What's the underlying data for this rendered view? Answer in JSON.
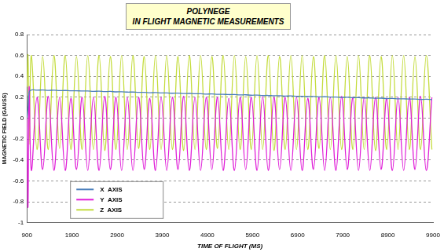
{
  "chart_data": {
    "type": "line",
    "title": "POLYNEGE",
    "subtitle": "IN FLIGHT MAGNETIC MEASUREMENTS",
    "x_label": "TIME OF FLIGHT (MS)",
    "y_label": "MAGNETIC FIELD (GAUSS)",
    "x": [
      900,
      925,
      950,
      1000,
      1125,
      1250,
      1375,
      1500,
      1625,
      1750,
      1875,
      2000,
      2125,
      2250,
      2375,
      2500,
      2625,
      2750,
      2875,
      3000,
      3125,
      3250,
      3375,
      3500,
      3625,
      3750,
      3875,
      4000,
      4125,
      4250,
      4375,
      4500,
      4625,
      4750,
      4875,
      5000,
      5125,
      5250,
      5375,
      5500,
      5625,
      5750,
      5875,
      6000,
      6125,
      6250,
      6375,
      6500,
      6625,
      6750,
      6875,
      7000,
      7125,
      7250,
      7375,
      7500,
      7625,
      7750,
      7875,
      8000,
      8125,
      8250,
      8375,
      8500,
      8625,
      8750,
      8875,
      9000,
      9125,
      9250,
      9375,
      9500,
      9625,
      9750,
      9875
    ],
    "series": [
      {
        "name": "X  AXIS",
        "color": "#4a7ebb",
        "values": [
          0,
          0.1,
          0.25,
          0.27,
          0.268,
          0.27,
          0.266,
          0.268,
          0.264,
          0.265,
          0.262,
          0.263,
          0.26,
          0.26,
          0.257,
          0.258,
          0.255,
          0.256,
          0.252,
          0.253,
          0.25,
          0.25,
          0.247,
          0.248,
          0.244,
          0.245,
          0.242,
          0.242,
          0.239,
          0.24,
          0.236,
          0.237,
          0.234,
          0.234,
          0.231,
          0.232,
          0.228,
          0.229,
          0.226,
          0.226,
          0.223,
          0.224,
          0.22,
          0.221,
          0.218,
          0.218,
          0.215,
          0.216,
          0.212,
          0.213,
          0.21,
          0.21,
          0.207,
          0.208,
          0.204,
          0.205,
          0.202,
          0.202,
          0.199,
          0.2,
          0.196,
          0.197,
          0.194,
          0.194,
          0.191,
          0.192,
          0.188,
          0.189,
          0.186,
          0.186,
          0.183,
          0.184,
          0.18,
          0.181,
          0.178
        ]
      },
      {
        "name": "Y  AXIS",
        "color": "#e020d8",
        "values": [
          0,
          -0.85,
          0.3,
          -0.5,
          0.2,
          -0.49,
          0.21,
          -0.5,
          0.2,
          -0.5,
          0.19,
          -0.49,
          0.2,
          -0.5,
          0.2,
          -0.5,
          0.21,
          -0.49,
          0.2,
          -0.5,
          0.2,
          -0.5,
          0.2,
          -0.49,
          0.19,
          -0.5,
          0.2,
          -0.5,
          0.2,
          -0.49,
          0.21,
          -0.5,
          0.2,
          -0.5,
          0.2,
          -0.49,
          0.2,
          -0.5,
          0.19,
          -0.5,
          0.2,
          -0.49,
          0.2,
          -0.5,
          0.21,
          -0.5,
          0.2,
          -0.49,
          0.2,
          -0.5,
          0.2,
          -0.5,
          0.19,
          -0.49,
          0.2,
          -0.5,
          0.2,
          -0.5,
          0.21,
          -0.49,
          0.2,
          -0.5,
          0.2,
          -0.5,
          0.2,
          -0.49,
          0.19,
          -0.5,
          0.2,
          -0.5,
          0.2,
          -0.49,
          0.21,
          -0.5,
          0.2
        ]
      },
      {
        "name": "Z  AXIS",
        "color": "#c4dc3c",
        "values": [
          0.3,
          0.6,
          -0.25,
          0.6,
          -0.3,
          0.59,
          -0.3,
          0.6,
          -0.29,
          0.6,
          -0.3,
          0.59,
          -0.3,
          0.6,
          -0.3,
          0.6,
          -0.31,
          0.59,
          -0.3,
          0.6,
          -0.3,
          0.6,
          -0.29,
          0.59,
          -0.3,
          0.6,
          -0.3,
          0.6,
          -0.3,
          0.59,
          -0.31,
          0.6,
          -0.3,
          0.6,
          -0.3,
          0.59,
          -0.29,
          0.6,
          -0.3,
          0.6,
          -0.3,
          0.59,
          -0.3,
          0.6,
          -0.3,
          0.6,
          -0.31,
          0.59,
          -0.3,
          0.6,
          -0.3,
          0.6,
          -0.3,
          0.59,
          -0.29,
          0.6,
          -0.3,
          0.6,
          -0.3,
          0.59,
          -0.3,
          0.6,
          -0.3,
          0.6,
          -0.31,
          0.59,
          -0.3,
          0.6,
          -0.3,
          0.6,
          -0.3,
          0.59,
          -0.3,
          0.6,
          -0.3
        ]
      }
    ],
    "xlim": [
      900,
      9900
    ],
    "xticks": [
      900,
      1900,
      2900,
      3900,
      4900,
      5900,
      6900,
      7900,
      8900,
      9900
    ],
    "ylim": [
      -1,
      0.8
    ],
    "yticks": [
      -1,
      -0.8,
      -0.6,
      -0.4,
      -0.2,
      0,
      0.2,
      0.4,
      0.6,
      0.8
    ],
    "grid": true,
    "legend": "lower left"
  }
}
